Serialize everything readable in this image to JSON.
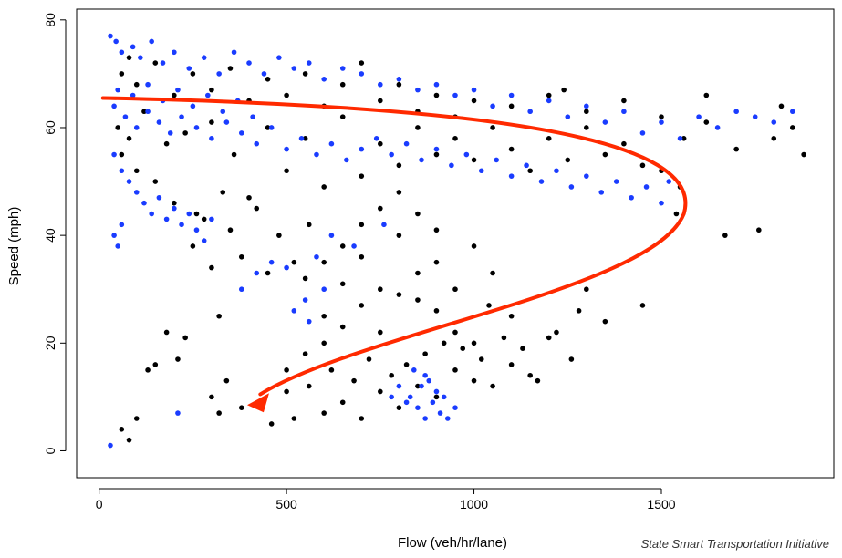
{
  "chart_data": {
    "type": "scatter",
    "xlabel": "Flow (veh/hr/lane)",
    "ylabel": "Speed (mph)",
    "xlim": [
      -60,
      1960
    ],
    "ylim": [
      -5,
      82
    ],
    "xticks": [
      0,
      500,
      1000,
      1500
    ],
    "yticks": [
      0,
      20,
      40,
      60,
      80
    ],
    "grid": false,
    "colors": {
      "series_a": "#000000",
      "series_b": "#1a3cff",
      "arrow": "#ff2a00"
    },
    "series": [
      {
        "color": "#000000",
        "points": [
          [
            50,
            60
          ],
          [
            60,
            55
          ],
          [
            80,
            58
          ],
          [
            100,
            52
          ],
          [
            120,
            63
          ],
          [
            150,
            50
          ],
          [
            180,
            57
          ],
          [
            200,
            46
          ],
          [
            230,
            59
          ],
          [
            260,
            44
          ],
          [
            300,
            61
          ],
          [
            330,
            48
          ],
          [
            360,
            55
          ],
          [
            400,
            47
          ],
          [
            450,
            60
          ],
          [
            500,
            52
          ],
          [
            550,
            58
          ],
          [
            600,
            49
          ],
          [
            650,
            62
          ],
          [
            700,
            51
          ],
          [
            750,
            57
          ],
          [
            800,
            53
          ],
          [
            850,
            60
          ],
          [
            900,
            55
          ],
          [
            950,
            58
          ],
          [
            1000,
            54
          ],
          [
            1050,
            60
          ],
          [
            1100,
            56
          ],
          [
            1150,
            52
          ],
          [
            1200,
            58
          ],
          [
            1250,
            54
          ],
          [
            1300,
            60
          ],
          [
            1350,
            55
          ],
          [
            1400,
            57
          ],
          [
            1450,
            53
          ],
          [
            1500,
            52
          ],
          [
            1550,
            49
          ],
          [
            1620,
            61
          ],
          [
            1700,
            56
          ],
          [
            1800,
            58
          ],
          [
            1850,
            60
          ],
          [
            1880,
            55
          ],
          [
            1760,
            41
          ],
          [
            1670,
            40
          ],
          [
            1540,
            44
          ],
          [
            1450,
            27
          ],
          [
            1350,
            24
          ],
          [
            1300,
            30
          ],
          [
            1200,
            21
          ],
          [
            1150,
            14
          ],
          [
            1100,
            25
          ],
          [
            1050,
            33
          ],
          [
            1000,
            38
          ],
          [
            950,
            30
          ],
          [
            900,
            35
          ],
          [
            850,
            28
          ],
          [
            800,
            40
          ],
          [
            750,
            22
          ],
          [
            700,
            36
          ],
          [
            650,
            31
          ],
          [
            600,
            25
          ],
          [
            560,
            42
          ],
          [
            520,
            35
          ],
          [
            480,
            40
          ],
          [
            450,
            33
          ],
          [
            420,
            45
          ],
          [
            380,
            36
          ],
          [
            350,
            41
          ],
          [
            320,
            25
          ],
          [
            300,
            34
          ],
          [
            280,
            43
          ],
          [
            250,
            38
          ],
          [
            230,
            21
          ],
          [
            210,
            17
          ],
          [
            180,
            22
          ],
          [
            150,
            16
          ],
          [
            130,
            15
          ],
          [
            100,
            6
          ],
          [
            80,
            2
          ],
          [
            60,
            4
          ],
          [
            300,
            10
          ],
          [
            320,
            7
          ],
          [
            340,
            13
          ],
          [
            380,
            8
          ],
          [
            430,
            9
          ],
          [
            460,
            5
          ],
          [
            500,
            11
          ],
          [
            520,
            6
          ],
          [
            560,
            12
          ],
          [
            600,
            7
          ],
          [
            620,
            15
          ],
          [
            650,
            9
          ],
          [
            680,
            13
          ],
          [
            700,
            6
          ],
          [
            720,
            17
          ],
          [
            750,
            11
          ],
          [
            780,
            14
          ],
          [
            800,
            8
          ],
          [
            820,
            16
          ],
          [
            850,
            12
          ],
          [
            870,
            18
          ],
          [
            900,
            10
          ],
          [
            920,
            20
          ],
          [
            950,
            15
          ],
          [
            970,
            19
          ],
          [
            1000,
            13
          ],
          [
            1020,
            17
          ],
          [
            1050,
            12
          ],
          [
            1080,
            21
          ],
          [
            1100,
            16
          ],
          [
            1130,
            19
          ],
          [
            1170,
            13
          ],
          [
            1220,
            22
          ],
          [
            1260,
            17
          ],
          [
            1280,
            26
          ],
          [
            500,
            15
          ],
          [
            550,
            18
          ],
          [
            600,
            20
          ],
          [
            650,
            23
          ],
          [
            700,
            27
          ],
          [
            750,
            30
          ],
          [
            800,
            29
          ],
          [
            850,
            33
          ],
          [
            900,
            26
          ],
          [
            950,
            22
          ],
          [
            1000,
            20
          ],
          [
            1040,
            27
          ],
          [
            550,
            32
          ],
          [
            600,
            35
          ],
          [
            650,
            38
          ],
          [
            700,
            42
          ],
          [
            750,
            45
          ],
          [
            800,
            48
          ],
          [
            850,
            44
          ],
          [
            900,
            41
          ],
          [
            60,
            70
          ],
          [
            80,
            73
          ],
          [
            100,
            68
          ],
          [
            150,
            72
          ],
          [
            200,
            66
          ],
          [
            250,
            70
          ],
          [
            300,
            67
          ],
          [
            350,
            71
          ],
          [
            400,
            65
          ],
          [
            450,
            69
          ],
          [
            500,
            66
          ],
          [
            550,
            70
          ],
          [
            600,
            64
          ],
          [
            650,
            68
          ],
          [
            700,
            72
          ],
          [
            750,
            65
          ],
          [
            800,
            68
          ],
          [
            850,
            63
          ],
          [
            900,
            66
          ],
          [
            950,
            62
          ],
          [
            1000,
            65
          ],
          [
            1100,
            64
          ],
          [
            1200,
            66
          ],
          [
            1300,
            63
          ],
          [
            1400,
            65
          ],
          [
            1500,
            62
          ],
          [
            1560,
            58
          ],
          [
            1620,
            66
          ],
          [
            1820,
            64
          ],
          [
            1240,
            67
          ]
        ]
      },
      {
        "color": "#1a3cff",
        "points": [
          [
            30,
            77
          ],
          [
            45,
            76
          ],
          [
            60,
            74
          ],
          [
            90,
            75
          ],
          [
            110,
            73
          ],
          [
            140,
            76
          ],
          [
            170,
            72
          ],
          [
            200,
            74
          ],
          [
            240,
            71
          ],
          [
            280,
            73
          ],
          [
            320,
            70
          ],
          [
            360,
            74
          ],
          [
            400,
            72
          ],
          [
            440,
            70
          ],
          [
            480,
            73
          ],
          [
            520,
            71
          ],
          [
            560,
            72
          ],
          [
            600,
            69
          ],
          [
            650,
            71
          ],
          [
            700,
            70
          ],
          [
            750,
            68
          ],
          [
            800,
            69
          ],
          [
            850,
            67
          ],
          [
            900,
            68
          ],
          [
            950,
            66
          ],
          [
            1000,
            67
          ],
          [
            1050,
            64
          ],
          [
            1100,
            66
          ],
          [
            1150,
            63
          ],
          [
            1200,
            65
          ],
          [
            1250,
            62
          ],
          [
            1300,
            64
          ],
          [
            1350,
            61
          ],
          [
            1400,
            63
          ],
          [
            1450,
            59
          ],
          [
            1500,
            61
          ],
          [
            1550,
            58
          ],
          [
            1600,
            62
          ],
          [
            1650,
            60
          ],
          [
            1700,
            63
          ],
          [
            1750,
            62
          ],
          [
            1800,
            61
          ],
          [
            1850,
            63
          ],
          [
            40,
            64
          ],
          [
            70,
            62
          ],
          [
            100,
            60
          ],
          [
            130,
            63
          ],
          [
            160,
            61
          ],
          [
            190,
            59
          ],
          [
            220,
            62
          ],
          [
            260,
            60
          ],
          [
            300,
            58
          ],
          [
            340,
            61
          ],
          [
            380,
            59
          ],
          [
            420,
            57
          ],
          [
            460,
            60
          ],
          [
            500,
            56
          ],
          [
            540,
            58
          ],
          [
            580,
            55
          ],
          [
            620,
            57
          ],
          [
            660,
            54
          ],
          [
            700,
            56
          ],
          [
            740,
            58
          ],
          [
            780,
            55
          ],
          [
            820,
            57
          ],
          [
            860,
            54
          ],
          [
            900,
            56
          ],
          [
            940,
            53
          ],
          [
            980,
            55
          ],
          [
            1020,
            52
          ],
          [
            1060,
            54
          ],
          [
            1100,
            51
          ],
          [
            1140,
            53
          ],
          [
            1180,
            50
          ],
          [
            1220,
            52
          ],
          [
            1260,
            49
          ],
          [
            1300,
            51
          ],
          [
            1340,
            48
          ],
          [
            1380,
            50
          ],
          [
            1420,
            47
          ],
          [
            1460,
            49
          ],
          [
            1500,
            46
          ],
          [
            1520,
            50
          ],
          [
            40,
            55
          ],
          [
            60,
            52
          ],
          [
            80,
            50
          ],
          [
            100,
            48
          ],
          [
            120,
            46
          ],
          [
            140,
            44
          ],
          [
            160,
            47
          ],
          [
            180,
            43
          ],
          [
            200,
            45
          ],
          [
            220,
            42
          ],
          [
            240,
            44
          ],
          [
            260,
            41
          ],
          [
            280,
            39
          ],
          [
            300,
            43
          ],
          [
            40,
            40
          ],
          [
            50,
            38
          ],
          [
            60,
            42
          ],
          [
            30,
            1
          ],
          [
            210,
            7
          ],
          [
            850,
            8
          ],
          [
            870,
            6
          ],
          [
            890,
            9
          ],
          [
            910,
            7
          ],
          [
            930,
            6
          ],
          [
            950,
            8
          ],
          [
            830,
            10
          ],
          [
            860,
            12
          ],
          [
            880,
            13
          ],
          [
            900,
            11
          ],
          [
            920,
            10
          ],
          [
            840,
            15
          ],
          [
            870,
            14
          ],
          [
            800,
            12
          ],
          [
            780,
            10
          ],
          [
            820,
            9
          ],
          [
            500,
            34
          ],
          [
            550,
            28
          ],
          [
            600,
            30
          ],
          [
            560,
            24
          ],
          [
            520,
            26
          ],
          [
            580,
            36
          ],
          [
            620,
            40
          ],
          [
            680,
            38
          ],
          [
            760,
            42
          ],
          [
            460,
            35
          ],
          [
            420,
            33
          ],
          [
            380,
            30
          ],
          [
            50,
            67
          ],
          [
            90,
            66
          ],
          [
            130,
            68
          ],
          [
            170,
            65
          ],
          [
            210,
            67
          ],
          [
            250,
            64
          ],
          [
            290,
            66
          ],
          [
            330,
            63
          ],
          [
            370,
            65
          ],
          [
            410,
            62
          ]
        ]
      }
    ],
    "annotation": {
      "type": "arrow"
    },
    "footer_credit": "State Smart Transportation Initiative"
  }
}
